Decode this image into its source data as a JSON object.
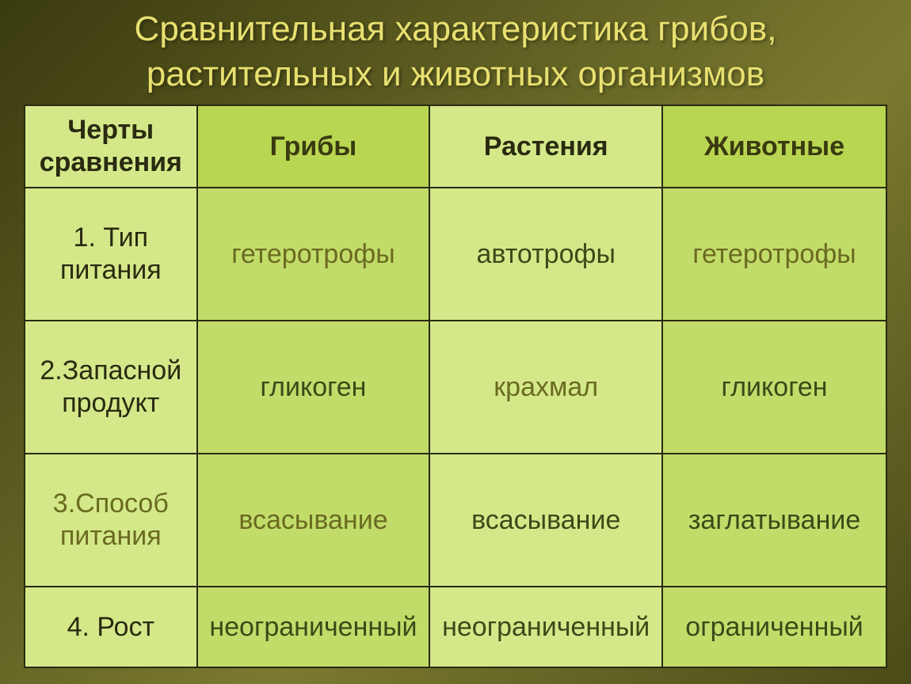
{
  "slide": {
    "title": "Сравнительная характеристика грибов, растительных и животных организмов",
    "title_color": "#e8e070",
    "title_fontsize": 44,
    "background_gradient": [
      "#3a3a10",
      "#5a5a20",
      "#7a7a30",
      "#4a4a18"
    ]
  },
  "table": {
    "type": "table",
    "border_color": "#2a2a10",
    "cell_fontsize": 34,
    "columns": [
      {
        "key": "feature",
        "label": "Черты сравнения",
        "width_pct": 20,
        "bg": "#d4e88a",
        "fg": "#2a2a10"
      },
      {
        "key": "fungi",
        "label": "Грибы",
        "width_pct": 27,
        "bg": "#b8d651",
        "fg": "#3a3a10"
      },
      {
        "key": "plants",
        "label": "Растения",
        "width_pct": 27,
        "bg": "#d4e88a",
        "fg": "#2a2a10"
      },
      {
        "key": "animals",
        "label": "Животные",
        "width_pct": 26,
        "bg": "#b8d651",
        "fg": "#3a3a10"
      }
    ],
    "rows": [
      {
        "feature": {
          "text": "1. Тип питания",
          "bg": "#d4e88a",
          "fg": "#2a2a10"
        },
        "fungi": {
          "text": "гетеротрофы",
          "bg": "#c2dc6a",
          "fg": "#6a6a20"
        },
        "plants": {
          "text": "автотрофы",
          "bg": "#d4e88a",
          "fg": "#3a4a18"
        },
        "animals": {
          "text": "гетеротрофы",
          "bg": "#c2dc6a",
          "fg": "#6a6a20"
        }
      },
      {
        "feature": {
          "text": "2.Запасной продукт",
          "bg": "#d4e88a",
          "fg": "#2a2a10"
        },
        "fungi": {
          "text": "гликоген",
          "bg": "#c2dc6a",
          "fg": "#3a4a18"
        },
        "plants": {
          "text": "крахмал",
          "bg": "#d4e88a",
          "fg": "#6a6a20"
        },
        "animals": {
          "text": "гликоген",
          "bg": "#c2dc6a",
          "fg": "#3a4a18"
        }
      },
      {
        "feature": {
          "text": "3.Способ питания",
          "bg": "#d4e88a",
          "fg": "#6a6a20"
        },
        "fungi": {
          "text": "всасывание",
          "bg": "#c2dc6a",
          "fg": "#6a6a20"
        },
        "plants": {
          "text": "всасывание",
          "bg": "#d4e88a",
          "fg": "#3a4a18"
        },
        "animals": {
          "text": "заглатывание",
          "bg": "#c2dc6a",
          "fg": "#3a4a18"
        }
      },
      {
        "feature": {
          "text": "4. Рост",
          "bg": "#d4e88a",
          "fg": "#2a2a10"
        },
        "fungi": {
          "text": "неограниченный",
          "bg": "#c2dc6a",
          "fg": "#3a4a18"
        },
        "plants": {
          "text": "неограниченный",
          "bg": "#d4e88a",
          "fg": "#3a4a18"
        },
        "animals": {
          "text": "ограниченный",
          "bg": "#c2dc6a",
          "fg": "#3a4a18"
        }
      }
    ]
  }
}
